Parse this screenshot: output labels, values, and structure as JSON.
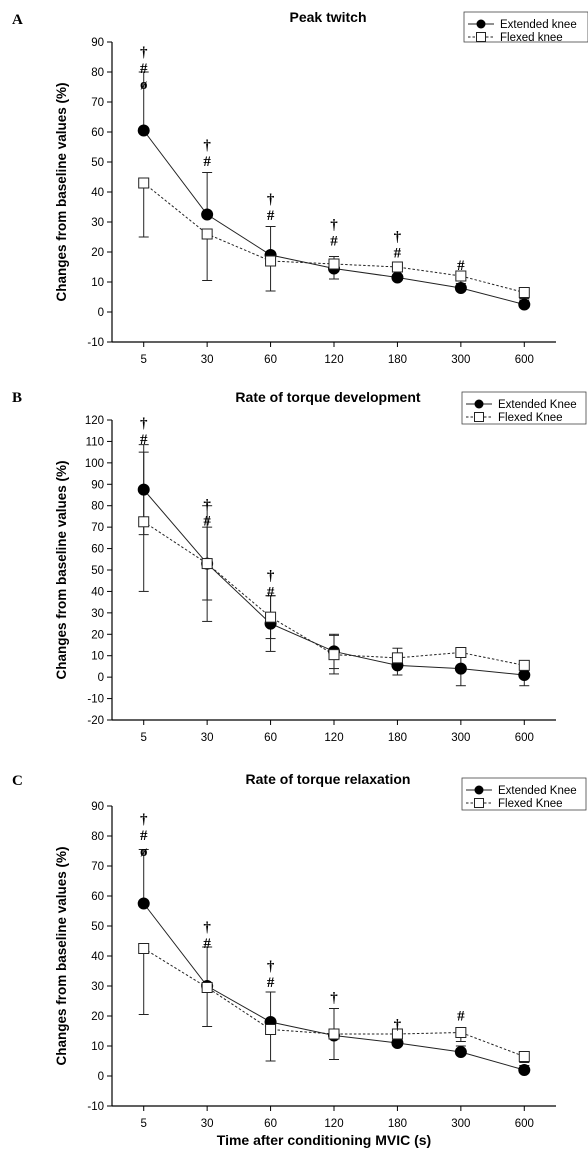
{
  "chart_data": [
    {
      "type": "line",
      "panel": "A",
      "title": "Peak twitch",
      "ylabel": "Changes from baseline values  (%)",
      "xlabel": "",
      "categories": [
        "5",
        "30",
        "60",
        "120",
        "180",
        "300",
        "600"
      ],
      "ylim": [
        -10,
        90
      ],
      "yticks": [
        -10,
        0,
        10,
        20,
        30,
        40,
        50,
        60,
        70,
        80,
        90
      ],
      "legend_position": "top-right",
      "series": [
        {
          "name": "Extended knee",
          "values": [
            60.5,
            32.5,
            19,
            14.5,
            11.5,
            8,
            2.5
          ],
          "error": [
            19.5,
            14,
            9.5,
            4,
            2,
            1.5,
            1.5
          ],
          "error_dir": "up",
          "marker": "filled-circle",
          "line": "solid"
        },
        {
          "name": "Flexed knee",
          "values": [
            43,
            26,
            17,
            16,
            15,
            12,
            6.5
          ],
          "error": [
            18,
            15.5,
            10,
            5,
            4,
            3.5,
            2
          ],
          "error_dir": "down",
          "marker": "open-square",
          "line": "dotted"
        }
      ],
      "annotations": [
        {
          "category": "5",
          "y": 87,
          "labels": [
            "†",
            "#",
            "ø"
          ]
        },
        {
          "category": "30",
          "y": 56,
          "labels": [
            "†",
            "#"
          ]
        },
        {
          "category": "60",
          "y": 38,
          "labels": [
            "†",
            "#"
          ]
        },
        {
          "category": "120",
          "y": 29.5,
          "labels": [
            "†",
            "#"
          ]
        },
        {
          "category": "180",
          "y": 25.5,
          "labels": [
            "†",
            "#"
          ]
        },
        {
          "category": "300",
          "y": 16,
          "labels": [
            "#"
          ]
        }
      ]
    },
    {
      "type": "line",
      "panel": "B",
      "title": "Rate of torque development",
      "ylabel": "Changes from baseline values  (%)",
      "xlabel": "",
      "categories": [
        "5",
        "30",
        "60",
        "120",
        "180",
        "300",
        "600"
      ],
      "ylim": [
        -20,
        120
      ],
      "yticks": [
        -20,
        -10,
        0,
        10,
        20,
        30,
        40,
        50,
        60,
        70,
        80,
        90,
        100,
        110,
        120
      ],
      "legend_position": "top-right",
      "series": [
        {
          "name": "Extended Knee",
          "values": [
            87.5,
            53,
            25,
            12,
            5.5,
            4,
            1
          ],
          "error": [
            21,
            17,
            13,
            8,
            4.5,
            8,
            5
          ],
          "error_dir": "both",
          "marker": "filled-circle",
          "line": "solid"
        },
        {
          "name": "Flexed Knee",
          "values": [
            72.5,
            53,
            28,
            10.5,
            9,
            11.5,
            5.5
          ],
          "error": [
            32.5,
            27,
            10,
            9,
            4.5,
            2,
            1.5
          ],
          "error_dir": "both",
          "marker": "open-square",
          "line": "dotted"
        }
      ],
      "annotations": [
        {
          "category": "5",
          "y": 119,
          "labels": [
            "†",
            "#"
          ]
        },
        {
          "category": "30",
          "y": 81,
          "labels": [
            "†",
            "#"
          ]
        },
        {
          "category": "60",
          "y": 48,
          "labels": [
            "†",
            "#"
          ]
        }
      ]
    },
    {
      "type": "line",
      "panel": "C",
      "title": "Rate of torque relaxation",
      "ylabel": "Changes from baseline values  (%)",
      "xlabel": "Time after conditioning MVIC (s)",
      "categories": [
        "5",
        "30",
        "60",
        "120",
        "180",
        "300",
        "600"
      ],
      "ylim": [
        -10,
        90
      ],
      "yticks": [
        -10,
        0,
        10,
        20,
        30,
        40,
        50,
        60,
        70,
        80,
        90
      ],
      "legend_position": "top-right",
      "series": [
        {
          "name": "Extended Knee",
          "values": [
            57.5,
            30,
            18,
            13.5,
            11,
            8,
            2
          ],
          "error": [
            18,
            13,
            10,
            9,
            4,
            2,
            1.5
          ],
          "error_dir": "up",
          "marker": "filled-circle",
          "line": "solid"
        },
        {
          "name": "Flexed Knee",
          "values": [
            42.5,
            29.5,
            15.5,
            14,
            14,
            14.5,
            6.5
          ],
          "error": [
            22,
            13,
            10.5,
            8.5,
            4,
            3,
            2
          ],
          "error_dir": "down",
          "marker": "open-square",
          "line": "dotted"
        }
      ],
      "annotations": [
        {
          "category": "5",
          "y": 86,
          "labels": [
            "†",
            "#",
            "ø"
          ]
        },
        {
          "category": "30",
          "y": 50,
          "labels": [
            "†",
            "#"
          ]
        },
        {
          "category": "60",
          "y": 37,
          "labels": [
            "†",
            "#"
          ]
        },
        {
          "category": "120",
          "y": 26.5,
          "labels": [
            "†"
          ]
        },
        {
          "category": "180",
          "y": 17.5,
          "labels": [
            "†"
          ]
        },
        {
          "category": "300",
          "y": 20.5,
          "labels": [
            "#"
          ]
        }
      ]
    }
  ]
}
